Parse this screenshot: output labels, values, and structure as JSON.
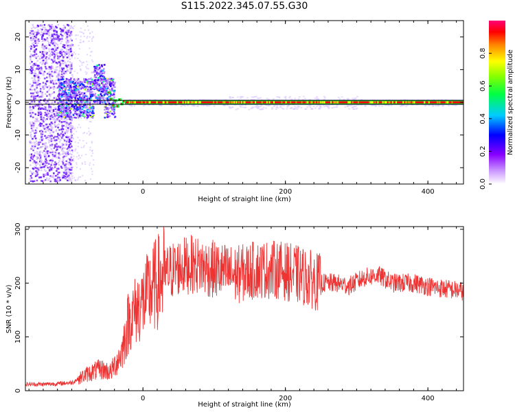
{
  "title": "S115.2022.345.07.55.G30",
  "colors": {
    "snr_line": "#ee3333",
    "frame": "#000000"
  },
  "chart_data": [
    {
      "type": "heatmap",
      "xlabel": "Height of straight line (km)",
      "ylabel": "Frequency (Hz)",
      "xlim": [
        -165,
        450
      ],
      "ylim": [
        -25,
        25
      ],
      "xticks": [
        0,
        200,
        400
      ],
      "yticks": [
        -20,
        -10,
        0,
        10,
        20
      ],
      "colorbar": {
        "label": "Normalized spectral amplitude",
        "ticks": [
          "0.0",
          "0.2",
          "0.4",
          "0.6",
          "0.8"
        ],
        "range": [
          0,
          1
        ],
        "colormap": [
          "#ffffff",
          "#8800ff",
          "#0000ff",
          "#00ffff",
          "#00ff00",
          "#ffff00",
          "#ff0000",
          "#ff0066"
        ]
      }
    },
    {
      "type": "line",
      "xlabel": "Height of straight line (km)",
      "ylabel": "SNR (10 * v/v)",
      "xlim": [
        -165,
        450
      ],
      "ylim": [
        0,
        305
      ],
      "xticks": [
        0,
        200,
        400
      ],
      "yticks": [
        0,
        100,
        200,
        300
      ],
      "series": [
        {
          "x": [
            -165,
            -140,
            -120,
            -100,
            -80,
            -60,
            -45,
            -30,
            -20,
            -10,
            0,
            10,
            20,
            30,
            50,
            70,
            100,
            130,
            160,
            190,
            220,
            250,
            270,
            290,
            310,
            330,
            350,
            380,
            410,
            450
          ],
          "y": [
            12,
            12,
            13,
            15,
            30,
            40,
            35,
            70,
            130,
            150,
            165,
            185,
            200,
            215,
            230,
            235,
            225,
            215,
            225,
            225,
            215,
            200,
            200,
            195,
            210,
            215,
            200,
            200,
            192,
            185
          ]
        }
      ]
    }
  ]
}
